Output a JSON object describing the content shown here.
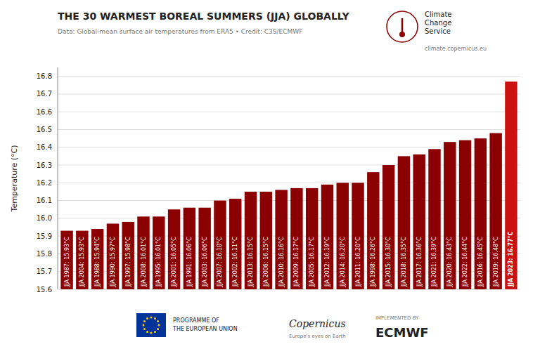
{
  "chart_data": {
    "type": "bar",
    "title": "THE 30 WARMEST BOREAL SUMMERS (JJA) GLOBALLY",
    "subtitle": "Data: Global-mean surface air temperatures from ERA5 • Credit: C3S/ECMWF",
    "y_label": "Temperature (°C)",
    "categories": [
      "JJA 1987: 15.93°C",
      "JJA 2004: 15.93°C",
      "JJA 1988: 15.94°C",
      "JJA 1990: 15.97°C",
      "JJA 1997: 15.98°C",
      "JJA 2008: 16.01°C",
      "JJA 1995: 16.01°C",
      "JJA 2001: 16.05°C",
      "JJA 1991: 16.06°C",
      "JJA 2003: 16.06°C",
      "JJA 2007: 16.10°C",
      "JJA 2002: 16.11°C",
      "JJA 2013: 16.15°C",
      "JJA 2006: 16.15°C",
      "JJA 2010: 16.16°C",
      "JJA 2009: 16.17°C",
      "JJA 2005: 16.17°C",
      "JJA 2012: 16.19°C",
      "JJA 2014: 16.20°C",
      "JJA 2011: 16.20°C",
      "JJA 1998: 16.26°C",
      "JJA 2015: 16.30°C",
      "JJA 2018: 16.35°C",
      "JJA 2017: 16.36°C",
      "JJA 2021: 16.39°C",
      "JJA 2020: 16.43°C",
      "JJA 2022: 16.44°C",
      "JJA 2016: 16.45°C",
      "JJA 2019: 16.48°C",
      "JJA 2023: 16.77°C"
    ],
    "values": [
      15.93,
      15.93,
      15.94,
      15.97,
      15.98,
      16.01,
      16.01,
      16.05,
      16.06,
      16.06,
      16.1,
      16.11,
      16.15,
      16.15,
      16.16,
      16.17,
      16.17,
      16.19,
      16.2,
      16.2,
      16.26,
      16.3,
      16.35,
      16.36,
      16.39,
      16.43,
      16.44,
      16.45,
      16.48,
      16.77
    ],
    "colors": [
      "#8b0000",
      "#8b0000",
      "#8b0000",
      "#8b0000",
      "#8b0000",
      "#8b0000",
      "#8b0000",
      "#8b0000",
      "#8b0000",
      "#8b0000",
      "#8b0000",
      "#8b0000",
      "#8b0000",
      "#8b0000",
      "#8b0000",
      "#8b0000",
      "#8b0000",
      "#8b0000",
      "#8b0000",
      "#8b0000",
      "#8b0000",
      "#8b0000",
      "#8b0000",
      "#8b0000",
      "#8b0000",
      "#8b0000",
      "#8b0000",
      "#8b0000",
      "#8b0000",
      "#cc1111"
    ],
    "ylim": [
      15.6,
      16.85
    ],
    "yticks": [
      15.6,
      15.7,
      15.8,
      15.9,
      {
        "value": 16.0,
        "label": "16.0"
      },
      16.1,
      16.2,
      16.3,
      16.4,
      16.5,
      16.6,
      16.7,
      16.8
    ],
    "grid": true,
    "annotations": [
      "Climate",
      "Change",
      "Service",
      "climate.copernicus.eu",
      "PROGRAMME OF",
      "THE EUROPEAN UNION",
      "Copernicus",
      "Europe's eyes on Earth",
      "IMPLEMENTED BY",
      "ECMWF"
    ]
  }
}
